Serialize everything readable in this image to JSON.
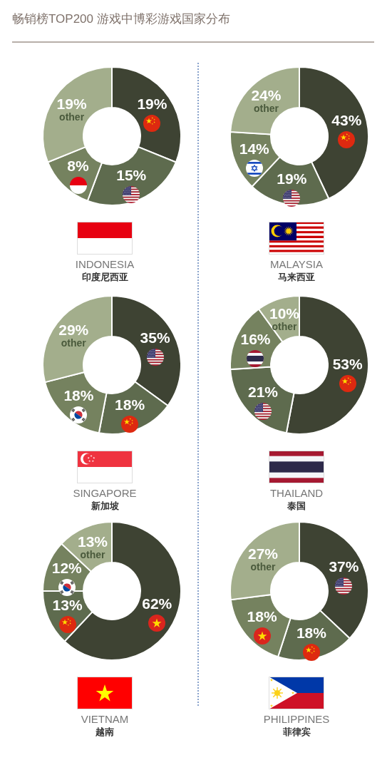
{
  "chart_data": [
    {
      "type": "other",
      "title": "畅销榜TOP200 游戏中博彩游戏国家分布"
    },
    {
      "type": "donut",
      "title": "INDONESIA",
      "subtitle": "印度尼西亚",
      "categories": [
        null,
        null,
        null,
        "other"
      ],
      "values": [
        19,
        15,
        8,
        19
      ],
      "value_labels": [
        "19%",
        "15%",
        "8%",
        "19%"
      ],
      "colors": [
        "#3e4333",
        "#5e6b4e",
        "#75825f",
        "#a3ae8c"
      ]
    },
    {
      "type": "donut",
      "title": "MALAYSIA",
      "subtitle": "马来西亚",
      "categories": [
        null,
        null,
        null,
        "other"
      ],
      "values": [
        43,
        19,
        14,
        24
      ],
      "value_labels": [
        "43%",
        "19%",
        "14%",
        "24%"
      ],
      "colors": [
        "#3e4333",
        "#5e6b4e",
        "#75825f",
        "#a3ae8c"
      ]
    },
    {
      "type": "donut",
      "title": "SINGAPORE",
      "subtitle": "新加坡",
      "categories": [
        null,
        null,
        null,
        "other"
      ],
      "values": [
        35,
        18,
        18,
        29
      ],
      "value_labels": [
        "35%",
        "18%",
        "18%",
        "29%"
      ],
      "colors": [
        "#3e4333",
        "#5e6b4e",
        "#75825f",
        "#a3ae8c"
      ]
    },
    {
      "type": "donut",
      "title": "THAILAND",
      "subtitle": "泰国",
      "categories": [
        null,
        null,
        null,
        "other"
      ],
      "values": [
        53,
        21,
        16,
        10
      ],
      "value_labels": [
        "53%",
        "21%",
        "16%",
        "10%"
      ],
      "colors": [
        "#3e4333",
        "#5e6b4e",
        "#75825f",
        "#a3ae8c"
      ]
    },
    {
      "type": "donut",
      "title": "VIETNAM",
      "subtitle": "越南",
      "categories": [
        null,
        null,
        null,
        "other"
      ],
      "values": [
        62,
        13,
        12,
        13
      ],
      "value_labels": [
        "62%",
        "13%",
        "12%",
        "13%"
      ],
      "colors": [
        "#3e4333",
        "#5e6b4e",
        "#75825f",
        "#a3ae8c"
      ]
    },
    {
      "type": "donut",
      "title": "PHILIPPINES",
      "subtitle": "菲律宾",
      "categories": [
        null,
        null,
        null,
        "other"
      ],
      "values": [
        37,
        18,
        18,
        27
      ],
      "value_labels": [
        "37%",
        "18%",
        "18%",
        "27%"
      ],
      "colors": [
        "#3e4333",
        "#5e6b4e",
        "#75825f",
        "#a3ae8c"
      ]
    }
  ]
}
